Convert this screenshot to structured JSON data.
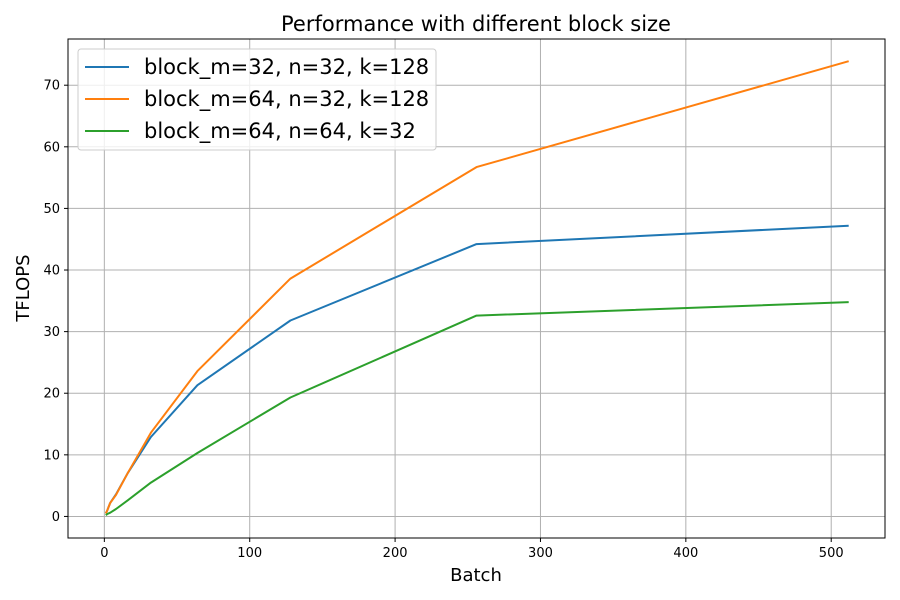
{
  "chart_data": {
    "type": "line",
    "title": "Performance with different block size",
    "xlabel": "Batch",
    "ylabel": "TFLOPS",
    "xlim": [
      -25,
      537
    ],
    "ylim": [
      -3.5,
      77.5
    ],
    "xticks": [
      0,
      100,
      200,
      300,
      400,
      500
    ],
    "yticks": [
      0,
      10,
      20,
      30,
      40,
      50,
      60,
      70
    ],
    "grid": true,
    "legend_position": "top-left",
    "x": [
      1,
      2,
      4,
      8,
      16,
      32,
      64,
      128,
      256,
      512
    ],
    "series": [
      {
        "name": "block_m=32, n=32, k=128",
        "color": "#1f77b4",
        "values": [
          0.5,
          1.0,
          2.2,
          3.6,
          7.0,
          12.9,
          21.3,
          31.8,
          44.2,
          47.2
        ]
      },
      {
        "name": "block_m=64, n=32, k=128",
        "color": "#ff7f0e",
        "values": [
          0.5,
          1.0,
          2.2,
          3.5,
          7.0,
          13.6,
          23.6,
          38.6,
          56.7,
          73.9
        ]
      },
      {
        "name": "block_m=64, n=64, k=32",
        "color": "#2ca02c",
        "values": [
          0.2,
          0.4,
          0.6,
          1.2,
          2.6,
          5.5,
          10.3,
          19.3,
          32.6,
          34.8
        ]
      }
    ]
  }
}
